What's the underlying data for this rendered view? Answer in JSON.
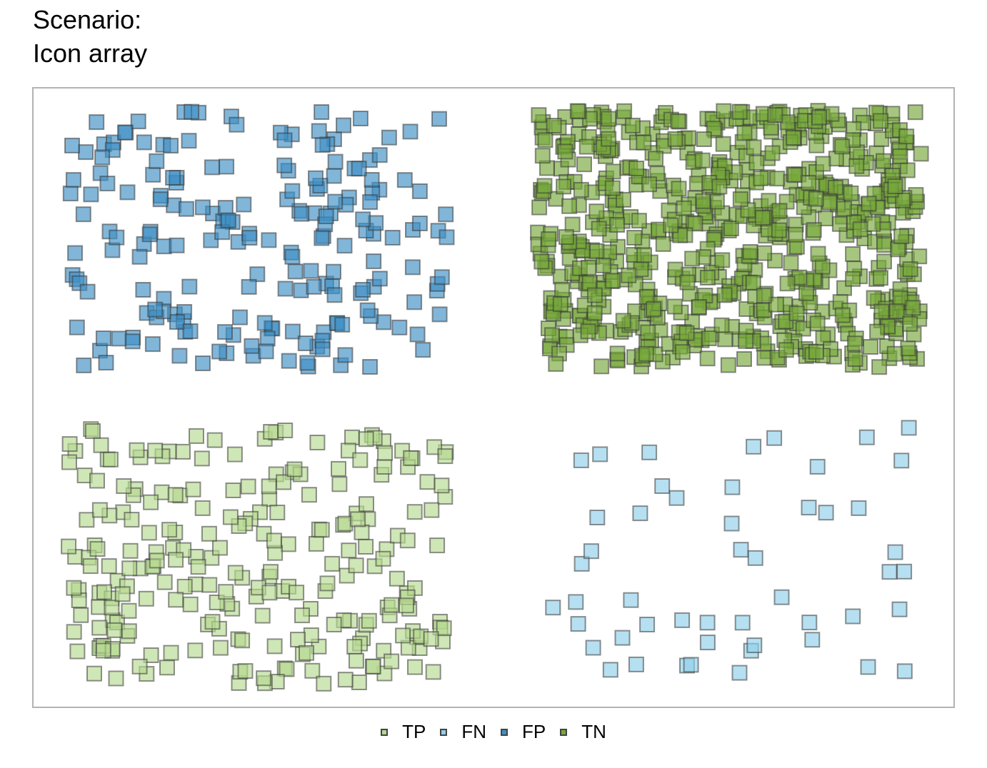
{
  "title_lines": [
    "Scenario:",
    "Icon array"
  ],
  "chart_data": {
    "type": "scatter",
    "description_of_marks": "square icons",
    "legend": [
      {
        "key": "TP",
        "label": "TP",
        "color": "#b5d98f"
      },
      {
        "key": "FN",
        "label": "FN",
        "color": "#8fcfea"
      },
      {
        "key": "FP",
        "label": "FP",
        "color": "#3d8fc4"
      },
      {
        "key": "TN",
        "label": "TN",
        "color": "#77a83a"
      }
    ],
    "legend_position": "bottom",
    "panels": [
      {
        "name": "FP",
        "quadrant": "top-left",
        "count": 200
      },
      {
        "name": "TN",
        "quadrant": "top-right",
        "count": 700
      },
      {
        "name": "TP",
        "quadrant": "bottom-left",
        "count": 250
      },
      {
        "name": "FN",
        "quadrant": "bottom-right",
        "count": 50
      }
    ],
    "grid": false,
    "axes": false
  }
}
